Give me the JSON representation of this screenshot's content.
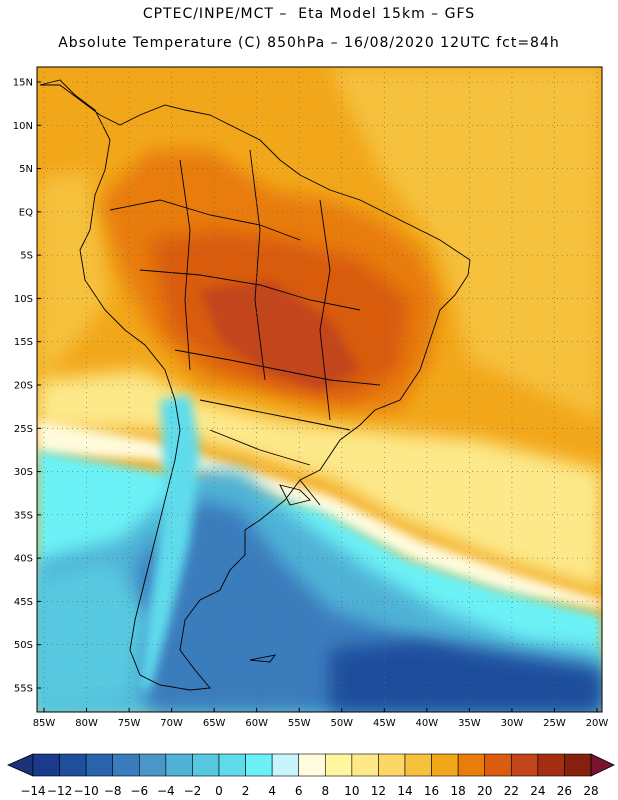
{
  "header": {
    "line1": "CPTEC/INPE/MCT –  Eta Model 15km – GFS",
    "line2": "Absolute Temperature (C) 850hPa – 16/08/2020 12UTC fct=84h"
  },
  "map": {
    "lat_labels": [
      "15N",
      "10N",
      "5N",
      "EQ",
      "5S",
      "10S",
      "15S",
      "20S",
      "25S",
      "30S",
      "35S",
      "40S",
      "45S",
      "50S",
      "55S"
    ],
    "lon_labels": [
      "85W",
      "80W",
      "75W",
      "70W",
      "65W",
      "60W",
      "55W",
      "50W",
      "45W",
      "40W",
      "35W",
      "30W",
      "25W",
      "20W"
    ],
    "lat_values": [
      15,
      10,
      5,
      0,
      -5,
      -10,
      -15,
      -20,
      -25,
      -30,
      -35,
      -40,
      -45,
      -50,
      -55
    ],
    "lon_values": [
      -85,
      -80,
      -75,
      -70,
      -65,
      -60,
      -55,
      -50,
      -45,
      -40,
      -35,
      -30,
      -25,
      -20
    ]
  },
  "colorbar": {
    "labels": [
      "-14",
      "-12",
      "-10",
      "-8",
      "-6",
      "-4",
      "-2",
      "0",
      "2",
      "4",
      "6",
      "8",
      "10",
      "12",
      "14",
      "16",
      "18",
      "20",
      "22",
      "24",
      "26",
      "28"
    ],
    "colors": [
      "#1a3a8c",
      "#1f4e9c",
      "#2a64ae",
      "#3a7cbd",
      "#4a96c8",
      "#4fb2d6",
      "#56c9e0",
      "#5fdcec",
      "#6cf2f6",
      "#c8f4fb",
      "#fffbdc",
      "#fff6a0",
      "#fde98a",
      "#fbd866",
      "#f6c13c",
      "#f2a71a",
      "#e87c0c",
      "#d95c10",
      "#c2441a",
      "#a32e12",
      "#86200e"
    ],
    "low_color": "#1d3278",
    "high_color": "#7a1230"
  }
}
